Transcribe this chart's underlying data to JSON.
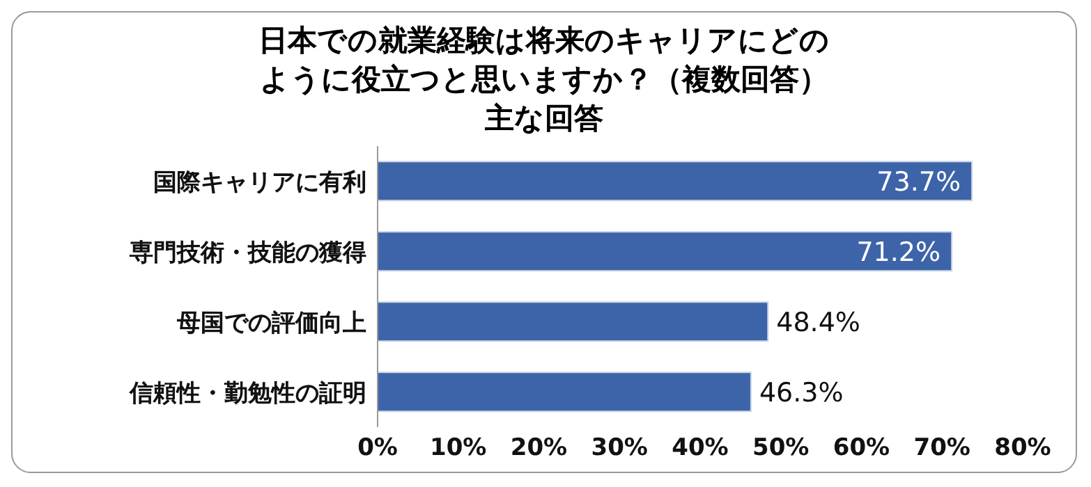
{
  "chart_data": {
    "type": "bar",
    "orientation": "horizontal",
    "title": "日本での就業経験は将来のキャリアにどのように役立つと思いますか？（複数回答）",
    "subtitle": "主な回答",
    "categories": [
      "国際キャリアに有利",
      "専門技術・技能の獲得",
      "母国での評価向上",
      "信頼性・勤勉性の証明"
    ],
    "values": [
      73.7,
      71.2,
      48.4,
      46.3
    ],
    "color": "#3d64a8",
    "value_labels": [
      "73.7%",
      "71.2%",
      "48.4%",
      "46.3%"
    ],
    "xlim": [
      0,
      80
    ],
    "xticks": [
      {
        "value": 0,
        "label": "0%"
      },
      {
        "value": 10,
        "label": "10%"
      },
      {
        "value": 20,
        "label": "20%"
      },
      {
        "value": 30,
        "label": "30%"
      },
      {
        "value": 40,
        "label": "40%"
      },
      {
        "value": 50,
        "label": "50%"
      },
      {
        "value": 60,
        "label": "60%"
      },
      {
        "value": 70,
        "label": "70%"
      },
      {
        "value": 80,
        "label": "80%"
      }
    ],
    "grid": false,
    "legend": false
  }
}
